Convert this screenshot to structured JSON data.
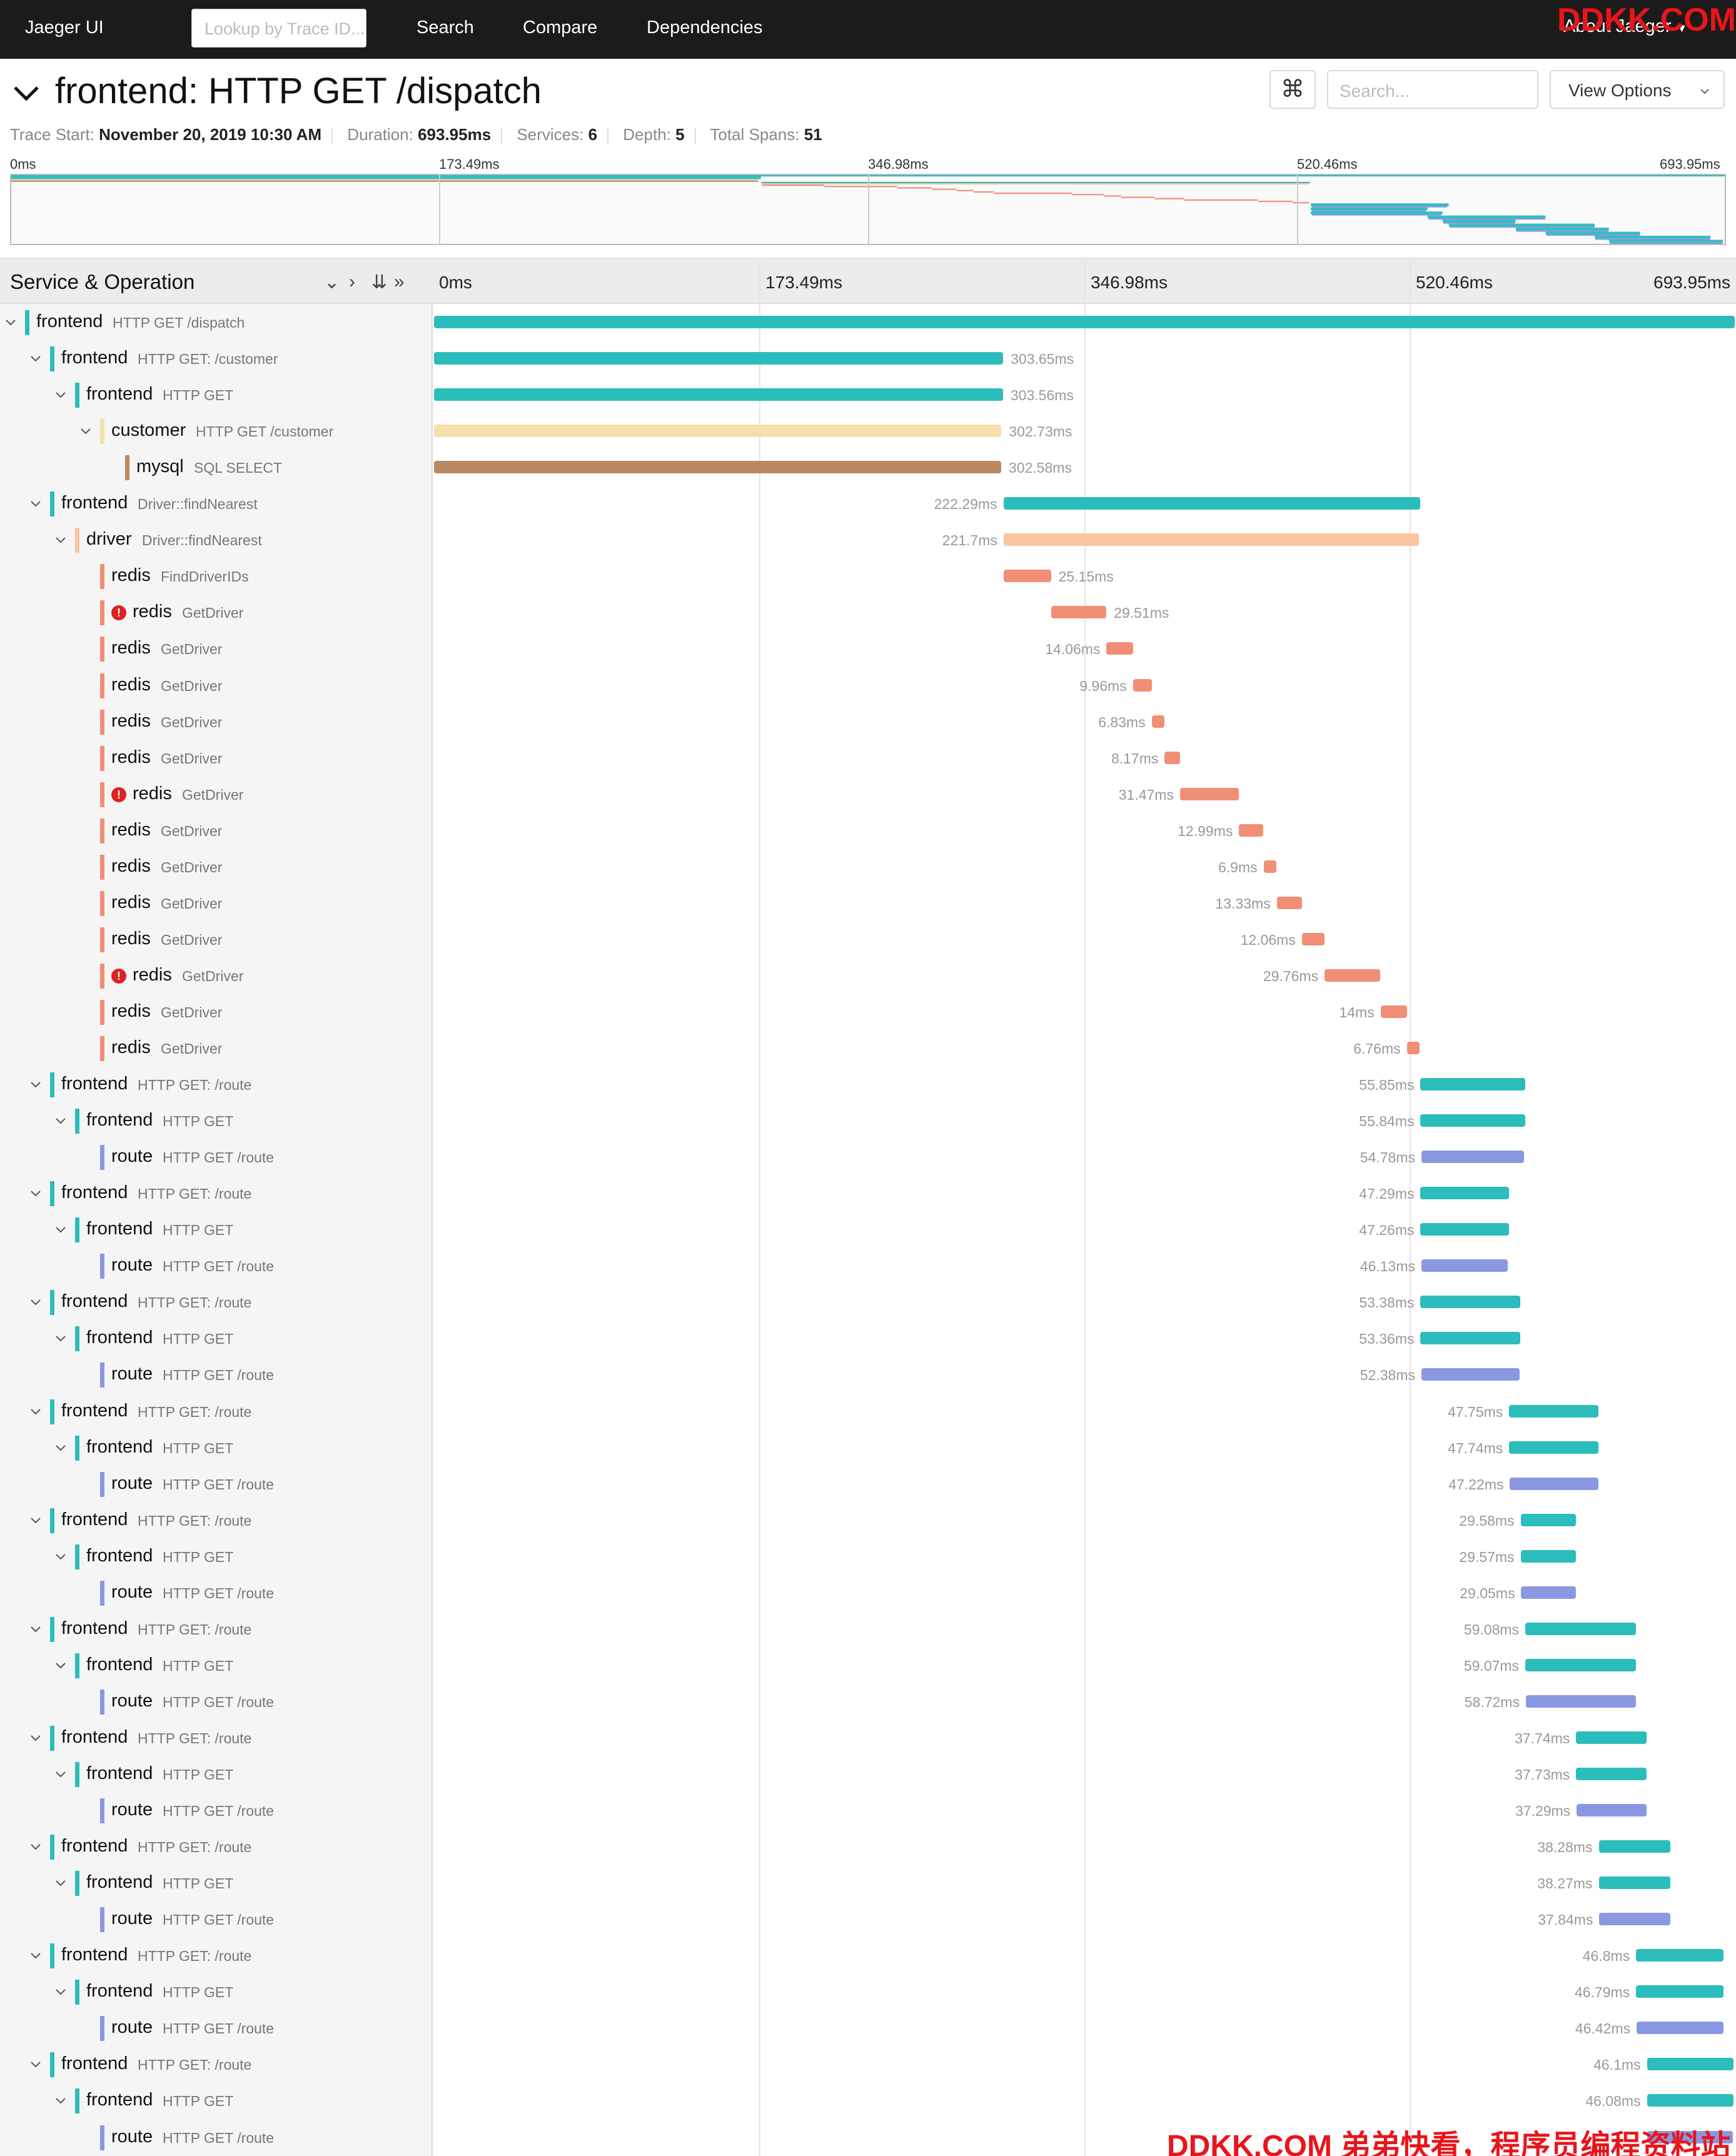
{
  "nav": {
    "brand": "Jaeger UI",
    "lookup_placeholder": "Lookup by Trace ID...",
    "links": [
      "Search",
      "Compare",
      "Dependencies"
    ],
    "about": "About Jaeger"
  },
  "trace": {
    "title": "frontend: HTTP GET /dispatch",
    "search_placeholder": "Search...",
    "view_options": "View Options",
    "kbd_glyph": "⌘",
    "meta": {
      "start_label": "Trace Start:",
      "start_value": "November 20, 2019 10:30 AM",
      "duration_label": "Duration:",
      "duration_value": "693.95ms",
      "services_label": "Services:",
      "services_value": "6",
      "depth_label": "Depth:",
      "depth_value": "5",
      "spans_label": "Total Spans:",
      "spans_value": "51"
    }
  },
  "timeline": {
    "heading": "Service & Operation",
    "ticks": [
      "0ms",
      "173.49ms",
      "346.98ms",
      "520.46ms",
      "693.95ms"
    ],
    "total_ms": 693.95
  },
  "colors": {
    "frontend": "#2bbcbc",
    "customer": "#f6dfaa",
    "mysql": "#b98a62",
    "driver": "#fbc59e",
    "redis": "#f08f75",
    "route": "#8a98e2",
    "error": "#dd2222"
  },
  "spans": [
    {
      "depth": 0,
      "service": "frontend",
      "op": "HTTP GET /dispatch",
      "start": 0,
      "dur": 693.95,
      "dur_label": "",
      "expand": true,
      "error": false
    },
    {
      "depth": 1,
      "service": "frontend",
      "op": "HTTP GET: /customer",
      "start": 0,
      "dur": 303.65,
      "dur_label": "303.65ms",
      "expand": true,
      "error": false
    },
    {
      "depth": 2,
      "service": "frontend",
      "op": "HTTP GET",
      "start": 0,
      "dur": 303.56,
      "dur_label": "303.56ms",
      "expand": true,
      "error": false
    },
    {
      "depth": 3,
      "service": "customer",
      "op": "HTTP GET /customer",
      "start": 0,
      "dur": 302.73,
      "dur_label": "302.73ms",
      "expand": true,
      "error": false
    },
    {
      "depth": 4,
      "service": "mysql",
      "op": "SQL SELECT",
      "start": 0,
      "dur": 302.58,
      "dur_label": "302.58ms",
      "expand": false,
      "error": false
    },
    {
      "depth": 1,
      "service": "frontend",
      "op": "Driver::findNearest",
      "start": 303.8,
      "dur": 222.29,
      "dur_label": "222.29ms",
      "expand": true,
      "error": false
    },
    {
      "depth": 2,
      "service": "driver",
      "op": "Driver::findNearest",
      "start": 303.9,
      "dur": 221.7,
      "dur_label": "221.7ms",
      "expand": true,
      "error": false
    },
    {
      "depth": 3,
      "service": "redis",
      "op": "FindDriverIDs",
      "start": 304,
      "dur": 25.15,
      "dur_label": "25.15ms",
      "expand": false,
      "error": false
    },
    {
      "depth": 3,
      "service": "redis",
      "op": "GetDriver",
      "start": 329.2,
      "dur": 29.51,
      "dur_label": "29.51ms",
      "expand": false,
      "error": true
    },
    {
      "depth": 3,
      "service": "redis",
      "op": "GetDriver",
      "start": 358.8,
      "dur": 14.06,
      "dur_label": "14.06ms",
      "expand": false,
      "error": false
    },
    {
      "depth": 3,
      "service": "redis",
      "op": "GetDriver",
      "start": 372.9,
      "dur": 9.96,
      "dur_label": "9.96ms",
      "expand": false,
      "error": false
    },
    {
      "depth": 3,
      "service": "redis",
      "op": "GetDriver",
      "start": 382.9,
      "dur": 6.83,
      "dur_label": "6.83ms",
      "expand": false,
      "error": false
    },
    {
      "depth": 3,
      "service": "redis",
      "op": "GetDriver",
      "start": 389.8,
      "dur": 8.17,
      "dur_label": "8.17ms",
      "expand": false,
      "error": false
    },
    {
      "depth": 3,
      "service": "redis",
      "op": "GetDriver",
      "start": 398,
      "dur": 31.47,
      "dur_label": "31.47ms",
      "expand": false,
      "error": true
    },
    {
      "depth": 3,
      "service": "redis",
      "op": "GetDriver",
      "start": 429.5,
      "dur": 12.99,
      "dur_label": "12.99ms",
      "expand": false,
      "error": false
    },
    {
      "depth": 3,
      "service": "redis",
      "op": "GetDriver",
      "start": 442.6,
      "dur": 6.9,
      "dur_label": "6.9ms",
      "expand": false,
      "error": false
    },
    {
      "depth": 3,
      "service": "redis",
      "op": "GetDriver",
      "start": 449.6,
      "dur": 13.33,
      "dur_label": "13.33ms",
      "expand": false,
      "error": false
    },
    {
      "depth": 3,
      "service": "redis",
      "op": "GetDriver",
      "start": 463,
      "dur": 12.06,
      "dur_label": "12.06ms",
      "expand": false,
      "error": false
    },
    {
      "depth": 3,
      "service": "redis",
      "op": "GetDriver",
      "start": 475.1,
      "dur": 29.76,
      "dur_label": "29.76ms",
      "expand": false,
      "error": true
    },
    {
      "depth": 3,
      "service": "redis",
      "op": "GetDriver",
      "start": 505,
      "dur": 14,
      "dur_label": "14ms",
      "expand": false,
      "error": false
    },
    {
      "depth": 3,
      "service": "redis",
      "op": "GetDriver",
      "start": 519,
      "dur": 6.76,
      "dur_label": "6.76ms",
      "expand": false,
      "error": false
    },
    {
      "depth": 1,
      "service": "frontend",
      "op": "HTTP GET: /route",
      "start": 526.3,
      "dur": 55.85,
      "dur_label": "55.85ms",
      "expand": true,
      "error": false
    },
    {
      "depth": 2,
      "service": "frontend",
      "op": "HTTP GET",
      "start": 526.3,
      "dur": 55.84,
      "dur_label": "55.84ms",
      "expand": true,
      "error": false
    },
    {
      "depth": 3,
      "service": "route",
      "op": "HTTP GET /route",
      "start": 526.8,
      "dur": 54.78,
      "dur_label": "54.78ms",
      "expand": false,
      "error": false
    },
    {
      "depth": 1,
      "service": "frontend",
      "op": "HTTP GET: /route",
      "start": 526.3,
      "dur": 47.29,
      "dur_label": "47.29ms",
      "expand": true,
      "error": false
    },
    {
      "depth": 2,
      "service": "frontend",
      "op": "HTTP GET",
      "start": 526.3,
      "dur": 47.26,
      "dur_label": "47.26ms",
      "expand": true,
      "error": false
    },
    {
      "depth": 3,
      "service": "route",
      "op": "HTTP GET /route",
      "start": 526.8,
      "dur": 46.13,
      "dur_label": "46.13ms",
      "expand": false,
      "error": false
    },
    {
      "depth": 1,
      "service": "frontend",
      "op": "HTTP GET: /route",
      "start": 526.3,
      "dur": 53.38,
      "dur_label": "53.38ms",
      "expand": true,
      "error": false
    },
    {
      "depth": 2,
      "service": "frontend",
      "op": "HTTP GET",
      "start": 526.3,
      "dur": 53.36,
      "dur_label": "53.36ms",
      "expand": true,
      "error": false
    },
    {
      "depth": 3,
      "service": "route",
      "op": "HTTP GET /route",
      "start": 526.8,
      "dur": 52.38,
      "dur_label": "52.38ms",
      "expand": false,
      "error": false
    },
    {
      "depth": 1,
      "service": "frontend",
      "op": "HTTP GET: /route",
      "start": 573.6,
      "dur": 47.75,
      "dur_label": "47.75ms",
      "expand": true,
      "error": false
    },
    {
      "depth": 2,
      "service": "frontend",
      "op": "HTTP GET",
      "start": 573.6,
      "dur": 47.74,
      "dur_label": "47.74ms",
      "expand": true,
      "error": false
    },
    {
      "depth": 3,
      "service": "route",
      "op": "HTTP GET /route",
      "start": 574,
      "dur": 47.22,
      "dur_label": "47.22ms",
      "expand": false,
      "error": false
    },
    {
      "depth": 1,
      "service": "frontend",
      "op": "HTTP GET: /route",
      "start": 579.7,
      "dur": 29.58,
      "dur_label": "29.58ms",
      "expand": true,
      "error": false
    },
    {
      "depth": 2,
      "service": "frontend",
      "op": "HTTP GET",
      "start": 579.7,
      "dur": 29.57,
      "dur_label": "29.57ms",
      "expand": true,
      "error": false
    },
    {
      "depth": 3,
      "service": "route",
      "op": "HTTP GET /route",
      "start": 580,
      "dur": 29.05,
      "dur_label": "29.05ms",
      "expand": false,
      "error": false
    },
    {
      "depth": 1,
      "service": "frontend",
      "op": "HTTP GET: /route",
      "start": 582.2,
      "dur": 59.08,
      "dur_label": "59.08ms",
      "expand": true,
      "error": false
    },
    {
      "depth": 2,
      "service": "frontend",
      "op": "HTTP GET",
      "start": 582.2,
      "dur": 59.07,
      "dur_label": "59.07ms",
      "expand": true,
      "error": false
    },
    {
      "depth": 3,
      "service": "route",
      "op": "HTTP GET /route",
      "start": 582.5,
      "dur": 58.72,
      "dur_label": "58.72ms",
      "expand": false,
      "error": false
    },
    {
      "depth": 1,
      "service": "frontend",
      "op": "HTTP GET: /route",
      "start": 609.3,
      "dur": 37.74,
      "dur_label": "37.74ms",
      "expand": true,
      "error": false
    },
    {
      "depth": 2,
      "service": "frontend",
      "op": "HTTP GET",
      "start": 609.3,
      "dur": 37.73,
      "dur_label": "37.73ms",
      "expand": true,
      "error": false
    },
    {
      "depth": 3,
      "service": "route",
      "op": "HTTP GET /route",
      "start": 609.6,
      "dur": 37.29,
      "dur_label": "37.29ms",
      "expand": false,
      "error": false
    },
    {
      "depth": 1,
      "service": "frontend",
      "op": "HTTP GET: /route",
      "start": 621.4,
      "dur": 38.28,
      "dur_label": "38.28ms",
      "expand": true,
      "error": false
    },
    {
      "depth": 2,
      "service": "frontend",
      "op": "HTTP GET",
      "start": 621.4,
      "dur": 38.27,
      "dur_label": "38.27ms",
      "expand": true,
      "error": false
    },
    {
      "depth": 3,
      "service": "route",
      "op": "HTTP GET /route",
      "start": 621.7,
      "dur": 37.84,
      "dur_label": "37.84ms",
      "expand": false,
      "error": false
    },
    {
      "depth": 1,
      "service": "frontend",
      "op": "HTTP GET: /route",
      "start": 641.3,
      "dur": 46.8,
      "dur_label": "46.8ms",
      "expand": true,
      "error": false
    },
    {
      "depth": 2,
      "service": "frontend",
      "op": "HTTP GET",
      "start": 641.3,
      "dur": 46.79,
      "dur_label": "46.79ms",
      "expand": true,
      "error": false
    },
    {
      "depth": 3,
      "service": "route",
      "op": "HTTP GET /route",
      "start": 641.6,
      "dur": 46.42,
      "dur_label": "46.42ms",
      "expand": false,
      "error": false
    },
    {
      "depth": 1,
      "service": "frontend",
      "op": "HTTP GET: /route",
      "start": 647.1,
      "dur": 46.1,
      "dur_label": "46.1ms",
      "expand": true,
      "error": false
    },
    {
      "depth": 2,
      "service": "frontend",
      "op": "HTTP GET",
      "start": 647.1,
      "dur": 46.08,
      "dur_label": "46.08ms",
      "expand": true,
      "error": false
    },
    {
      "depth": 3,
      "service": "route",
      "op": "HTTP GET /route",
      "start": 647.4,
      "dur": 45.7,
      "dur_label": "",
      "expand": false,
      "error": false
    }
  ],
  "watermark": {
    "top": "DDKK.COM",
    "bottom": "DDKK.COM 弟弟快看，程序员编程资料站"
  }
}
